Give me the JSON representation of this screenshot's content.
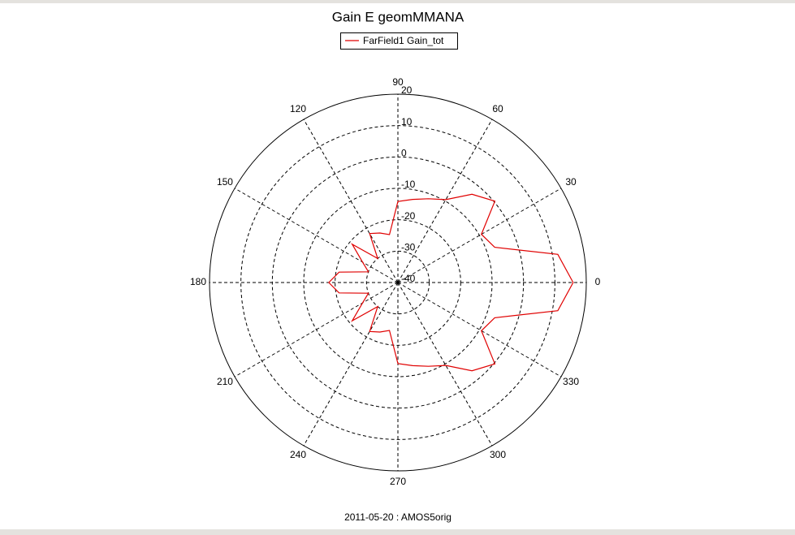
{
  "chart_data": {
    "type": "polar",
    "title": "Gain E geomMMANA",
    "footer": "2011-05-20 : AMOS5orig",
    "x": [
      0,
      10,
      20,
      30,
      40,
      50,
      60,
      70,
      80,
      90,
      100,
      110,
      120,
      130,
      140,
      150,
      160,
      170,
      180,
      190,
      200,
      210,
      220,
      230,
      240,
      250,
      260,
      270,
      280,
      290,
      300,
      310,
      320,
      330,
      340,
      350
    ],
    "series": [
      {
        "name": "FarField1 Gain_tot",
        "color": "#e00000",
        "values": [
          15.8,
          11.7,
          -7.2,
          -9.3,
          0.3,
          -3.3,
          -9.5,
          -11.6,
          -13.1,
          -14.2,
          -24.5,
          -23.2,
          -22,
          -30,
          -21,
          -27,
          -30,
          -21,
          -18,
          -21,
          -30,
          -27,
          -21,
          -30,
          -22,
          -23.2,
          -24.5,
          -14.2,
          -13.1,
          -11.6,
          -9.5,
          -3.3,
          0.3,
          -9.3,
          -7.2,
          11.7
        ]
      }
    ],
    "rlim": [
      -40,
      20
    ],
    "rticks": [
      -40,
      -30,
      -20,
      -10,
      0,
      10,
      20
    ],
    "thetaticks": [
      0,
      30,
      60,
      90,
      120,
      150,
      180,
      210,
      240,
      270,
      300,
      330
    ],
    "grid": true
  }
}
